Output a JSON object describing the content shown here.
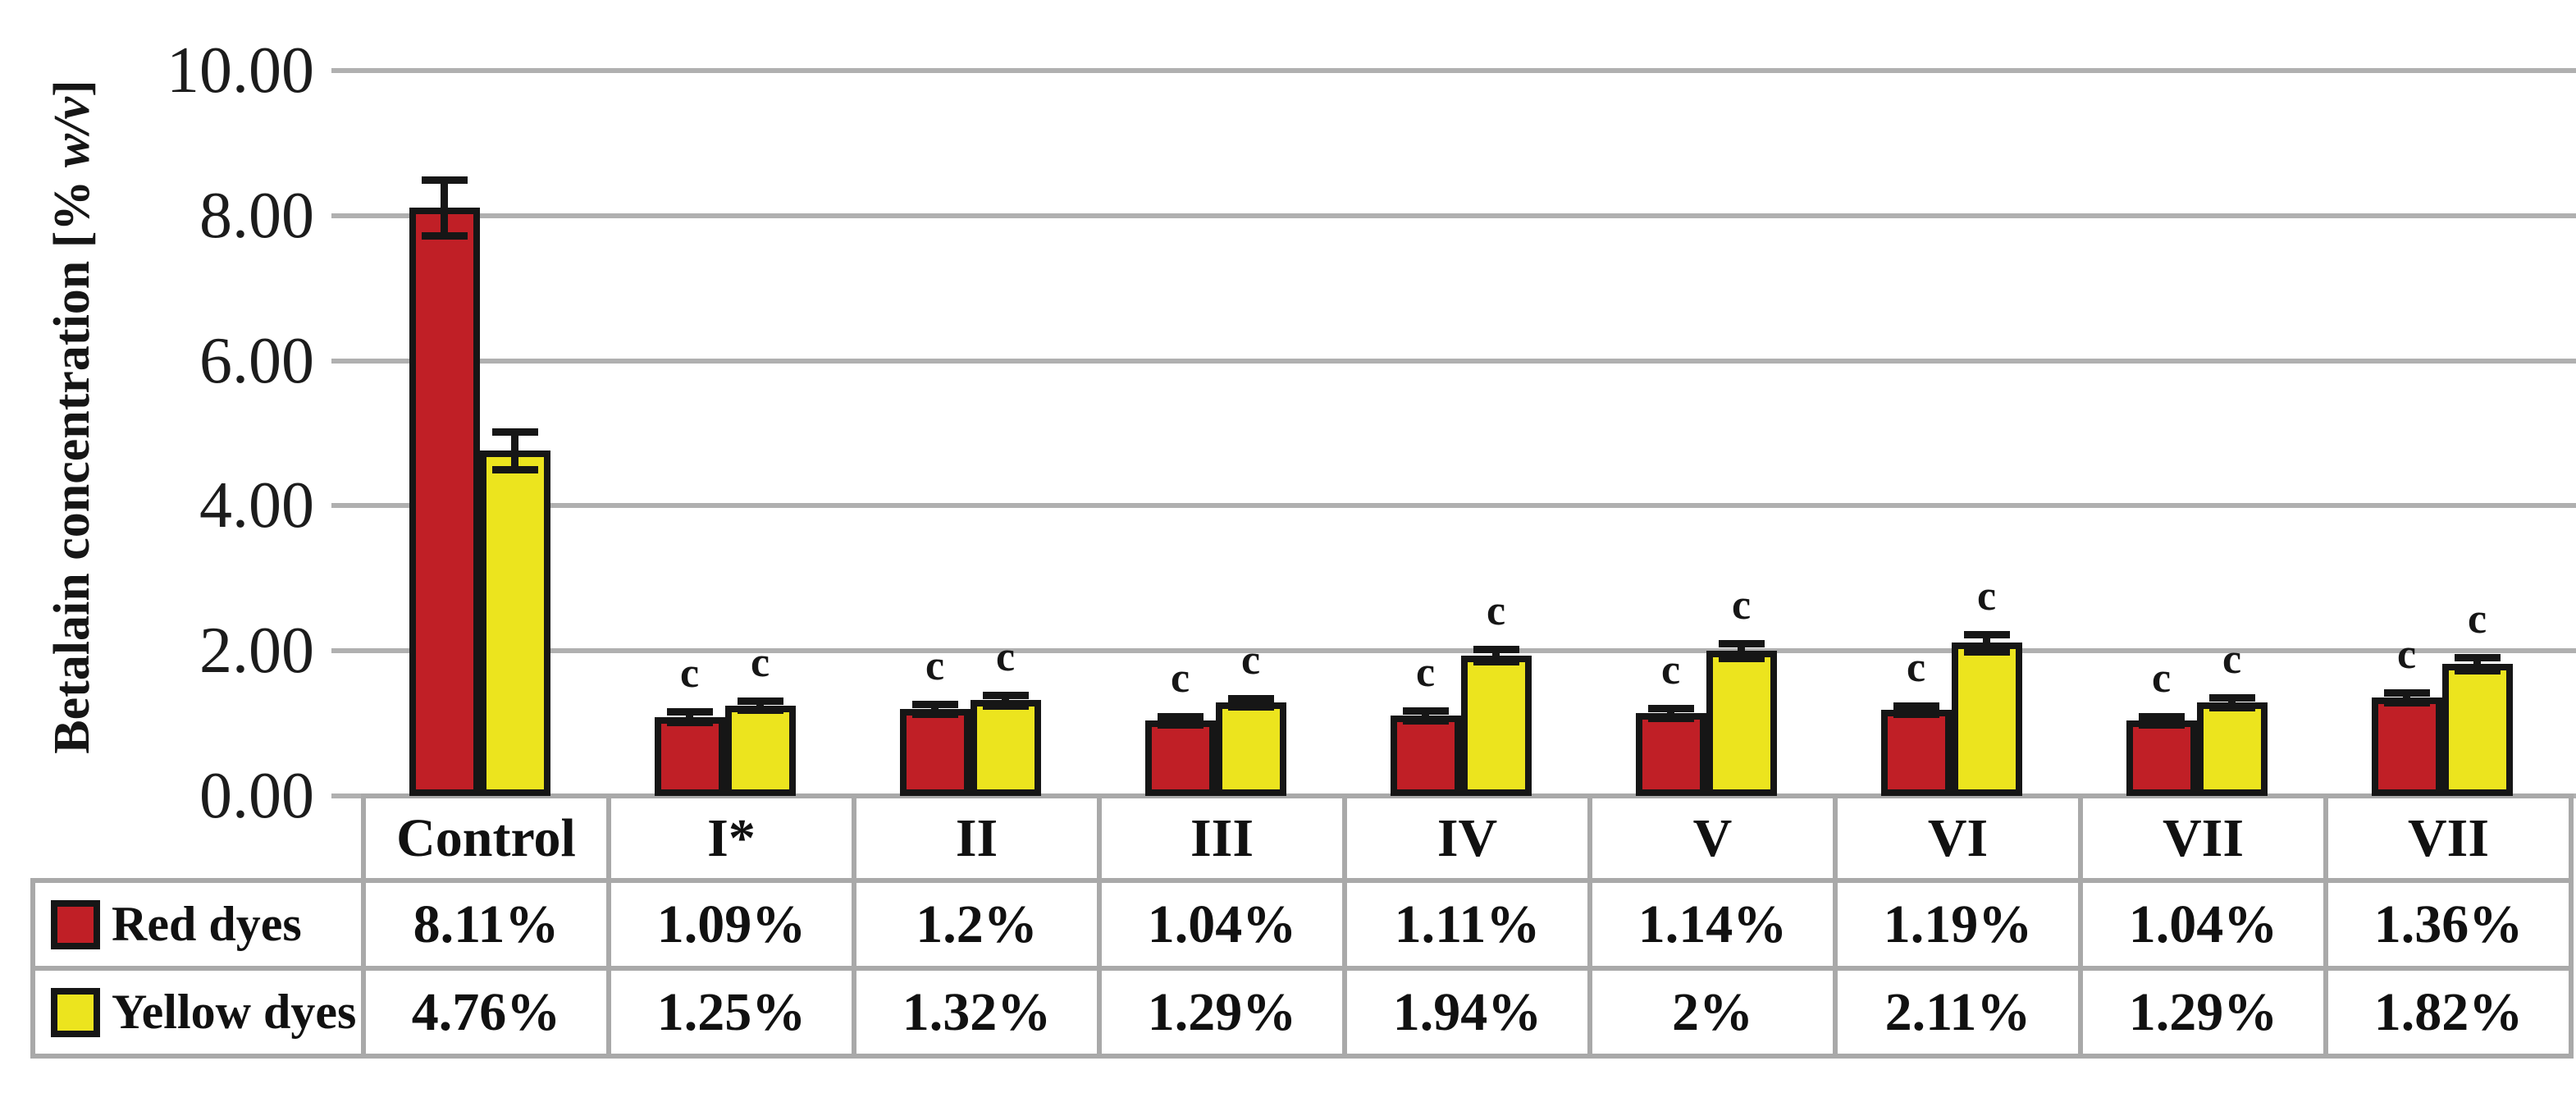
{
  "chart_data": {
    "type": "bar",
    "title": "",
    "xlabel": "",
    "ylabel": "Betalain concentration [% w/v]",
    "ylabel_main": "Betalain concentration [% ",
    "ylabel_italic": "w/v",
    "ylabel_close": "]",
    "categories": [
      "Control",
      "I*",
      "II",
      "III",
      "IV",
      "V",
      "VI",
      "VII",
      "VII"
    ],
    "series": [
      {
        "name": "Red dyes",
        "color": "#c01f26",
        "values": [
          8.11,
          1.09,
          1.2,
          1.04,
          1.11,
          1.14,
          1.19,
          1.04,
          1.36
        ],
        "value_labels": [
          "8.11%",
          "1.09%",
          "1.2%",
          "1.04%",
          "1.11%",
          "1.14%",
          "1.19%",
          "1.04%",
          "1.36%"
        ],
        "errors": [
          0.38,
          0.07,
          0.07,
          0.06,
          0.07,
          0.07,
          0.06,
          0.06,
          0.07
        ]
      },
      {
        "name": "Yellow dyes",
        "color": "#ece41e",
        "values": [
          4.76,
          1.25,
          1.32,
          1.29,
          1.94,
          2,
          2.11,
          1.29,
          1.82
        ],
        "value_labels": [
          "4.76%",
          "1.25%",
          "1.32%",
          "1.29%",
          "1.94%",
          "2%",
          "2.11%",
          "1.29%",
          "1.82%"
        ],
        "errors": [
          0.26,
          0.06,
          0.07,
          0.06,
          0.08,
          0.1,
          0.12,
          0.07,
          0.09
        ]
      }
    ],
    "significance_marker": "c",
    "marker_on_categories_from_index": 1,
    "y_ticks": [
      "10.00",
      "8.00",
      "6.00",
      "4.00",
      "2.00",
      "0.00"
    ],
    "y_tick_values": [
      10,
      8,
      6,
      4,
      2,
      0
    ],
    "ylim": [
      0,
      10
    ],
    "grid": true,
    "gridline_color": "#b0b0b0",
    "bar_border_color": "#161616",
    "legend_position": "table-left",
    "data_table_shown": true
  }
}
